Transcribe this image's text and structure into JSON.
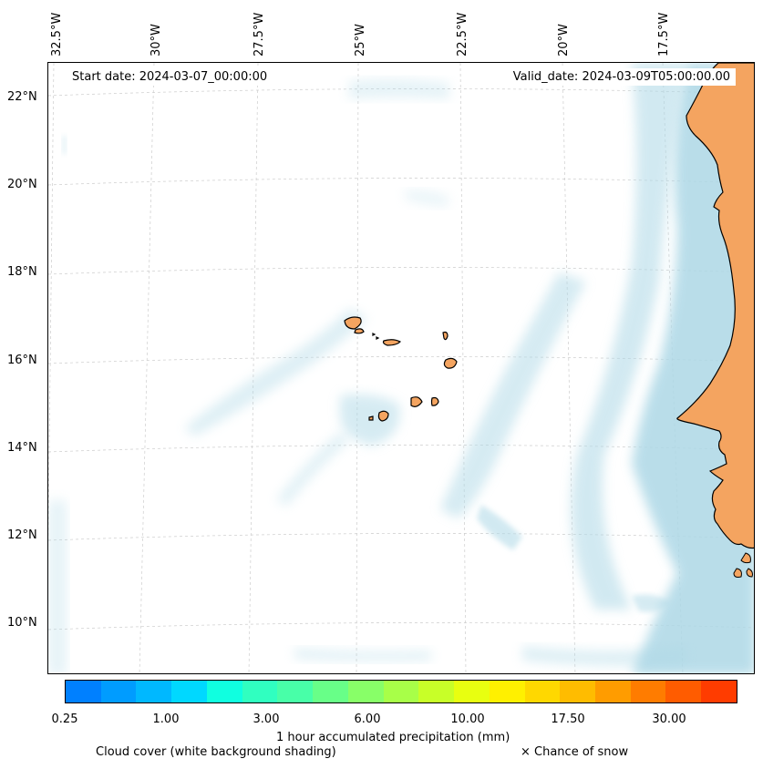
{
  "top_axis_labels": [
    "32.5°W",
    "30°W",
    "27.5°W",
    "25°W",
    "22.5°W",
    "20°W",
    "17.5°W"
  ],
  "left_axis_labels": [
    "22°N",
    "20°N",
    "18°N",
    "16°N",
    "14°N",
    "12°N",
    "10°N"
  ],
  "start_date": "Start date: 2024-03-07_00:00:00",
  "valid_date": "Valid_date: 2024-03-09T05:00:00.00",
  "colorbar": {
    "label": "1 hour accumulated precipitation (mm)",
    "tick_labels": [
      "0.25",
      "1.00",
      "3.00",
      "6.00",
      "10.00",
      "17.50",
      "30.00"
    ],
    "colors": [
      "#0080ff",
      "#009cff",
      "#00b8ff",
      "#00d8ff",
      "#10ffe0",
      "#30ffc0",
      "#48ffa8",
      "#68ff88",
      "#88ff68",
      "#a8ff48",
      "#c8ff28",
      "#e8ff10",
      "#fff000",
      "#ffd800",
      "#ffbc00",
      "#ff9c00",
      "#ff7c00",
      "#ff5c00",
      "#ff3c00"
    ]
  },
  "legend": {
    "cloud_cover": "Cloud cover (white background shading)",
    "snow": "× Chance of snow"
  }
}
